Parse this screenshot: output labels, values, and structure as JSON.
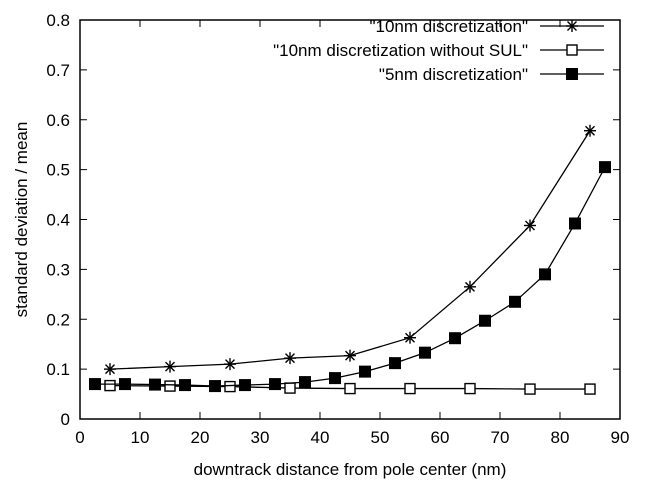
{
  "chart_data": {
    "type": "line",
    "xlabel": "downtrack distance from pole center (nm)",
    "ylabel": "standard deviation / mean",
    "xlim": [
      0,
      90
    ],
    "ylim": [
      0,
      0.8
    ],
    "xticks": [
      "0",
      "10",
      "20",
      "30",
      "40",
      "50",
      "60",
      "70",
      "80",
      "90"
    ],
    "yticks": [
      "0",
      "0.1",
      "0.2",
      "0.3",
      "0.4",
      "0.5",
      "0.6",
      "0.7",
      "0.8"
    ],
    "grid": false,
    "legend_position": "top-right",
    "series": [
      {
        "name": "\"10nm discretization\"",
        "marker": "star",
        "x": [
          5,
          15,
          25,
          35,
          45,
          55,
          65,
          75,
          85
        ],
        "y": [
          0.1,
          0.105,
          0.11,
          0.122,
          0.127,
          0.163,
          0.265,
          0.388,
          0.578
        ]
      },
      {
        "name": "\"10nm discretization without SUL\"",
        "marker": "open-square",
        "x": [
          5,
          15,
          25,
          35,
          45,
          55,
          65,
          75,
          85
        ],
        "y": [
          0.067,
          0.066,
          0.065,
          0.062,
          0.061,
          0.061,
          0.061,
          0.06,
          0.06
        ]
      },
      {
        "name": "\"5nm discretization\"",
        "marker": "filled-square",
        "x": [
          2.5,
          7.5,
          12.5,
          17.5,
          22.5,
          27.5,
          32.5,
          37.5,
          42.5,
          47.5,
          52.5,
          57.5,
          62.5,
          67.5,
          72.5,
          77.5,
          82.5,
          87.5
        ],
        "y": [
          0.07,
          0.07,
          0.069,
          0.068,
          0.066,
          0.068,
          0.07,
          0.074,
          0.082,
          0.095,
          0.112,
          0.133,
          0.162,
          0.197,
          0.235,
          0.29,
          0.392,
          0.505
        ]
      }
    ]
  }
}
